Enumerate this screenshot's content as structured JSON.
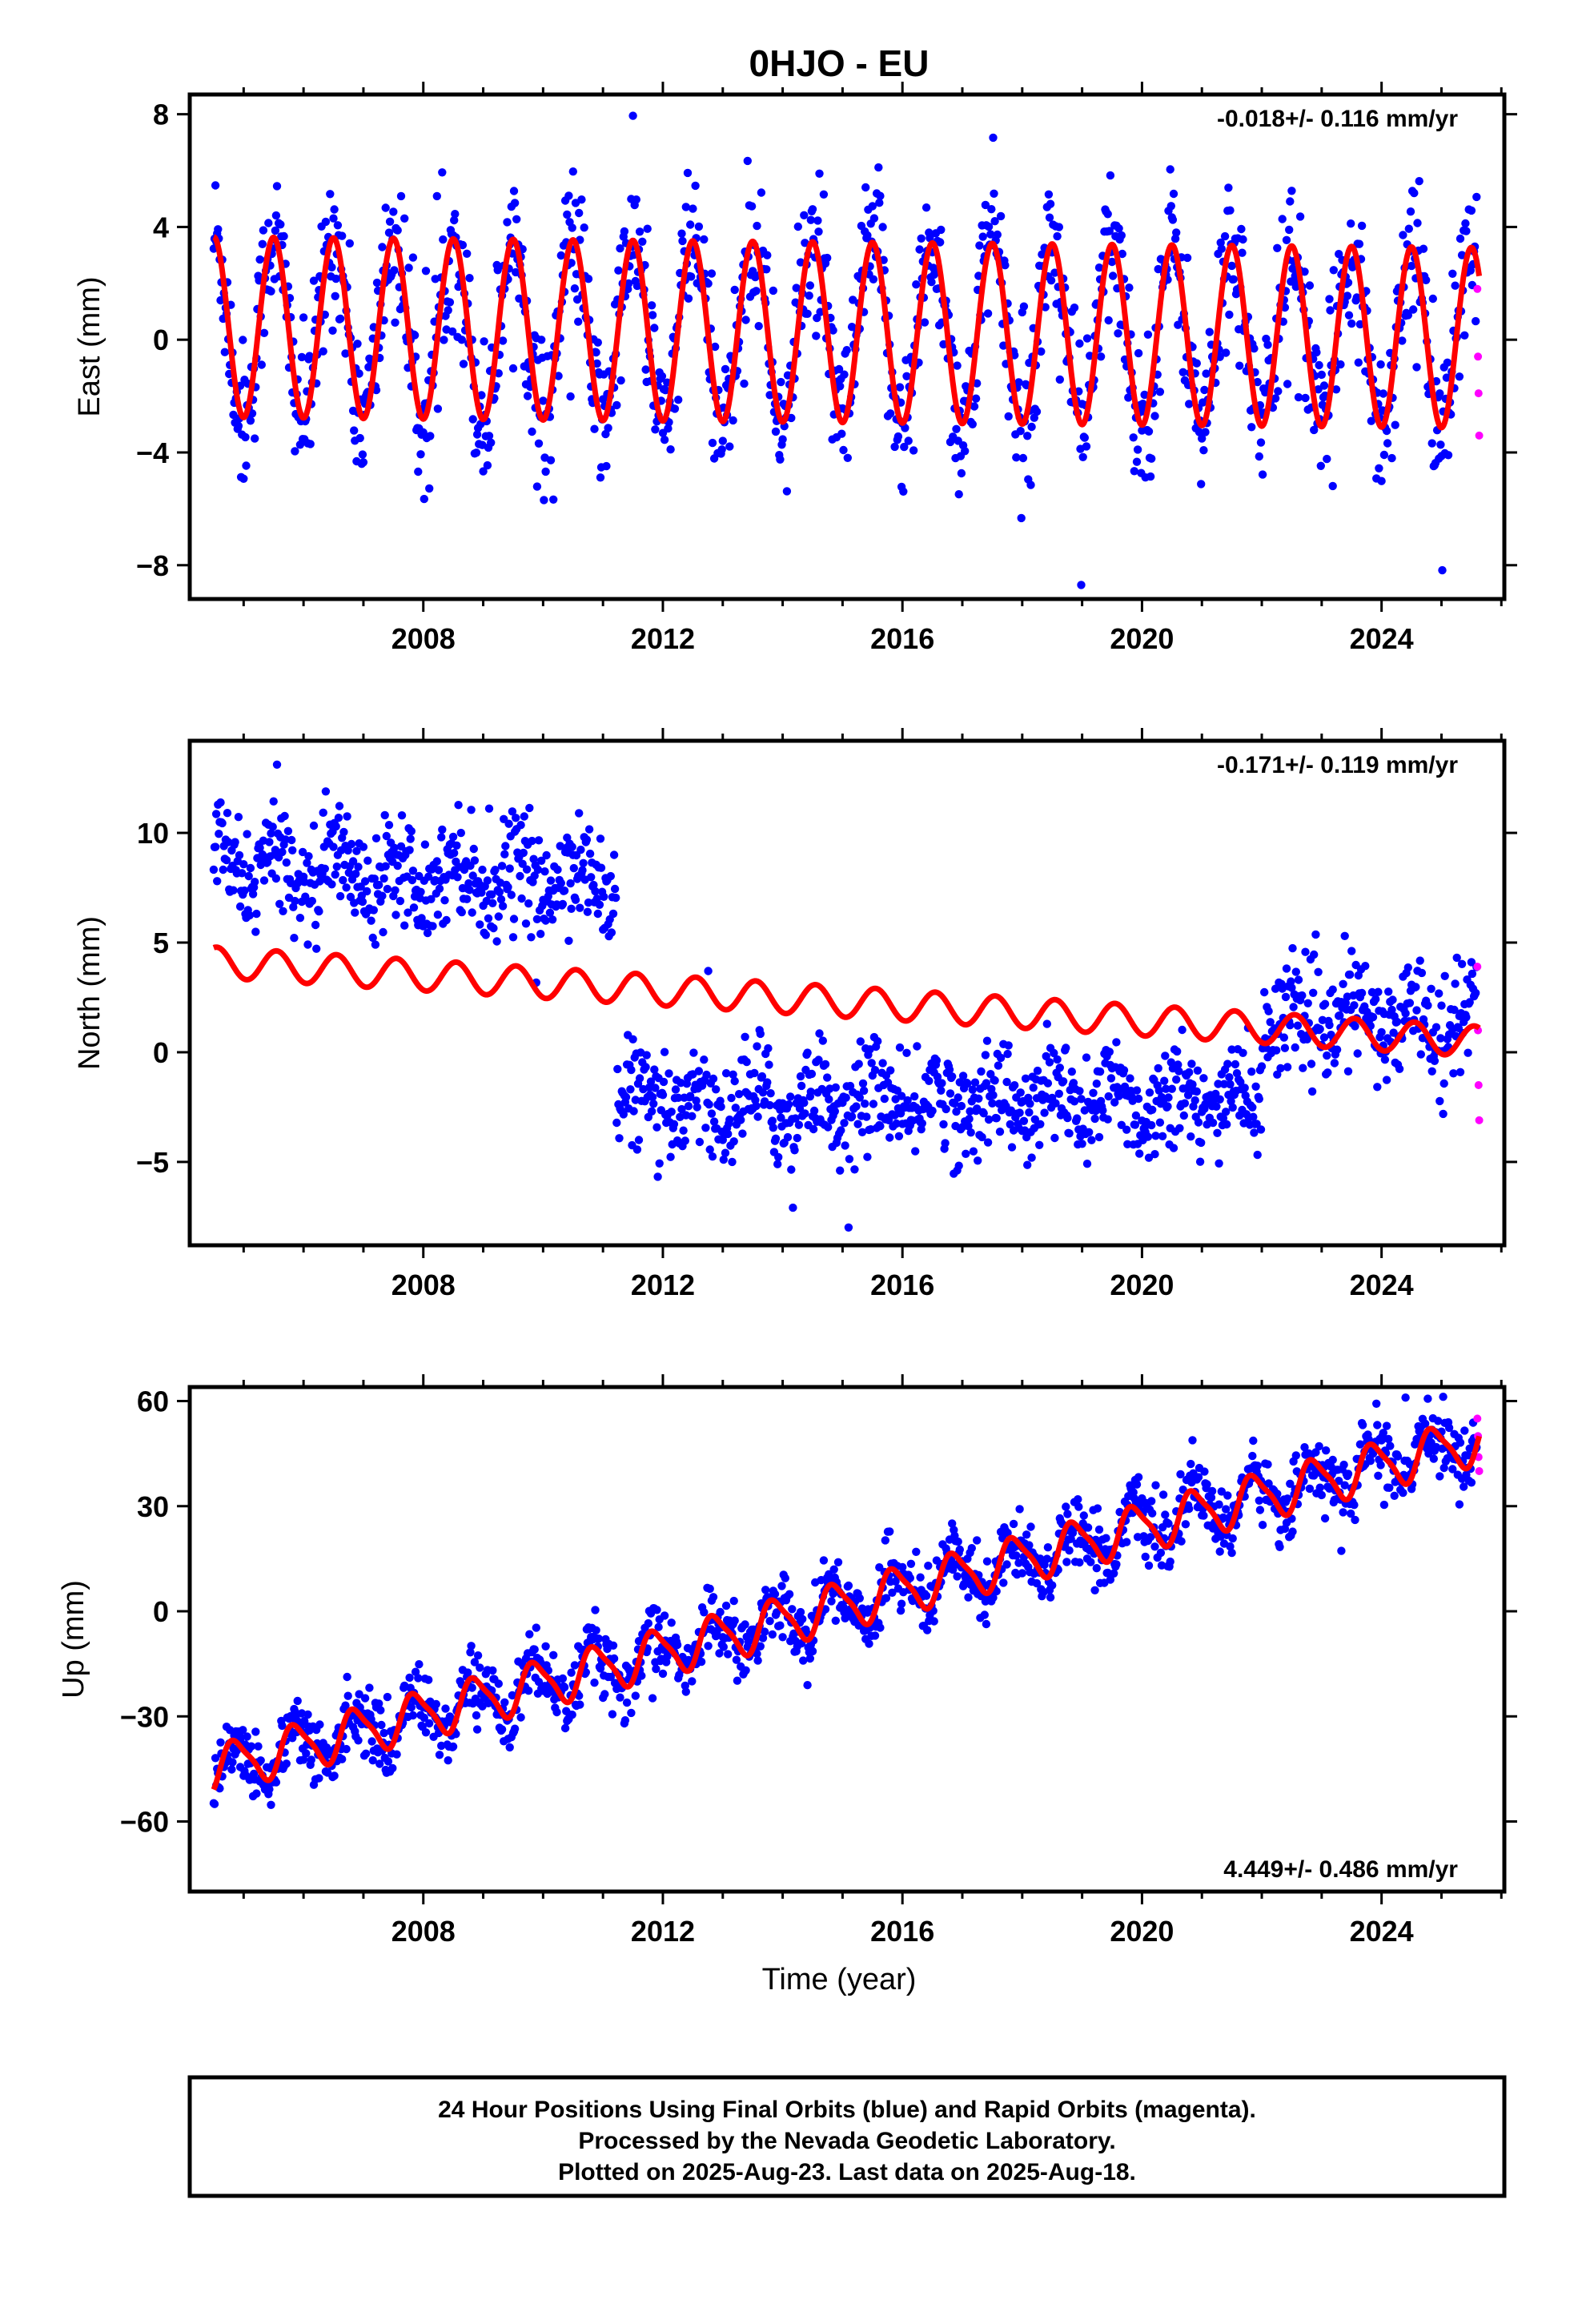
{
  "title": "0HJO - EU",
  "colors": {
    "final": "#0000ff",
    "rapid": "#ff00ff",
    "model": "#ff0000",
    "frame": "#000000"
  },
  "x_label": "Time (year)",
  "footer": {
    "line1": "24 Hour Positions Using Final Orbits (blue) and Rapid Orbits (magenta).",
    "line2": "Processed by the Nevada Geodetic Laboratory.",
    "line3": "Plotted on 2025-Aug-23. Last data on 2025-Aug-18."
  },
  "chart_data": [
    {
      "type": "scatter",
      "title": "0HJO - EU",
      "ylabel": "East (mm)",
      "xlabel": "",
      "xlim": [
        2004.1,
        2026.05
      ],
      "ylim": [
        -9.2,
        8.7
      ],
      "xticks": [
        2008,
        2012,
        2016,
        2020,
        2024
      ],
      "yticks": [
        -8,
        -4,
        0,
        4,
        8
      ],
      "ytick_labels": [
        "−8",
        "−4",
        "0",
        "4",
        "8"
      ],
      "rate": "-0.018+/- 0.116 mm/yr",
      "rate_position": "top-right",
      "data_range": [
        2004.5,
        2025.63
      ],
      "model": {
        "offset": 0.45,
        "trend": -0.018,
        "amplitude": 3.2,
        "phase": 0.25,
        "amplitude2": 0.0,
        "phase2": 0.0,
        "steps": []
      },
      "scatter_noise": 1.35,
      "series": [
        {
          "name": "Final Orbits",
          "color": "#0000ff",
          "style": "points"
        },
        {
          "name": "Rapid Orbits",
          "color": "#ff00ff",
          "style": "points",
          "x": [
            2025.6,
            2025.61,
            2025.62,
            2025.63
          ],
          "y": [
            1.8,
            -0.6,
            -1.9,
            -3.4
          ]
        },
        {
          "name": "Model",
          "color": "#ff0000",
          "style": "line"
        }
      ]
    },
    {
      "type": "scatter",
      "ylabel": "North (mm)",
      "xlabel": "",
      "xlim": [
        2004.1,
        2026.05
      ],
      "ylim": [
        -8.8,
        14.2
      ],
      "xticks": [
        2008,
        2012,
        2016,
        2020,
        2024
      ],
      "yticks": [
        -5,
        0,
        5,
        10
      ],
      "ytick_labels": [
        "−5",
        "0",
        "5",
        "10"
      ],
      "rate": "-0.171+/- 0.119 mm/yr",
      "rate_position": "top-right",
      "data_range": [
        2004.5,
        2025.63
      ],
      "model": {
        "offset": 4.1,
        "trend": -0.171,
        "amplitude": 0.7,
        "phase": 0.3,
        "amplitude2": 0.0,
        "phase2": 0.0,
        "steps": []
      },
      "scatter_noise": 1.15,
      "data_levels": [
        {
          "from": 2004.5,
          "to": 2011.22,
          "level": 8.6,
          "trend": -0.12
        },
        {
          "from": 2011.22,
          "to": 2022.0,
          "level": -2.4,
          "trend": 0.02
        },
        {
          "from": 2022.0,
          "to": 2025.63,
          "level": 1.5,
          "trend": 0.0
        }
      ],
      "series": [
        {
          "name": "Final Orbits",
          "color": "#0000ff",
          "style": "points"
        },
        {
          "name": "Rapid Orbits",
          "color": "#ff00ff",
          "style": "points",
          "x": [
            2025.6,
            2025.61,
            2025.62,
            2025.63
          ],
          "y": [
            3.9,
            1.0,
            -1.5,
            -3.1
          ]
        },
        {
          "name": "Model",
          "color": "#ff0000",
          "style": "line"
        }
      ]
    },
    {
      "type": "scatter",
      "ylabel": "Up (mm)",
      "xlabel": "Time (year)",
      "xlim": [
        2004.1,
        2026.05
      ],
      "ylim": [
        -80,
        64
      ],
      "xticks": [
        2008,
        2012,
        2016,
        2020,
        2024
      ],
      "yticks": [
        -60,
        -30,
        0,
        30,
        60
      ],
      "ytick_labels": [
        "−60",
        "−30",
        "0",
        "30",
        "60"
      ],
      "rate": "4.449+/- 0.486 mm/yr",
      "rate_position": "bottom-right",
      "data_range": [
        2004.5,
        2025.63
      ],
      "model": {
        "offset": -45,
        "trend": 4.449,
        "amplitude": 6.5,
        "phase": 0.62,
        "amplitude2": 1.5,
        "phase2": 0.1,
        "steps": []
      },
      "scatter_noise": 4.5,
      "series": [
        {
          "name": "Final Orbits",
          "color": "#0000ff",
          "style": "points"
        },
        {
          "name": "Rapid Orbits",
          "color": "#ff00ff",
          "style": "points",
          "x": [
            2025.6,
            2025.61,
            2025.62,
            2025.63
          ],
          "y": [
            55,
            50,
            44,
            40
          ]
        },
        {
          "name": "Model",
          "color": "#ff0000",
          "style": "line"
        }
      ]
    }
  ]
}
